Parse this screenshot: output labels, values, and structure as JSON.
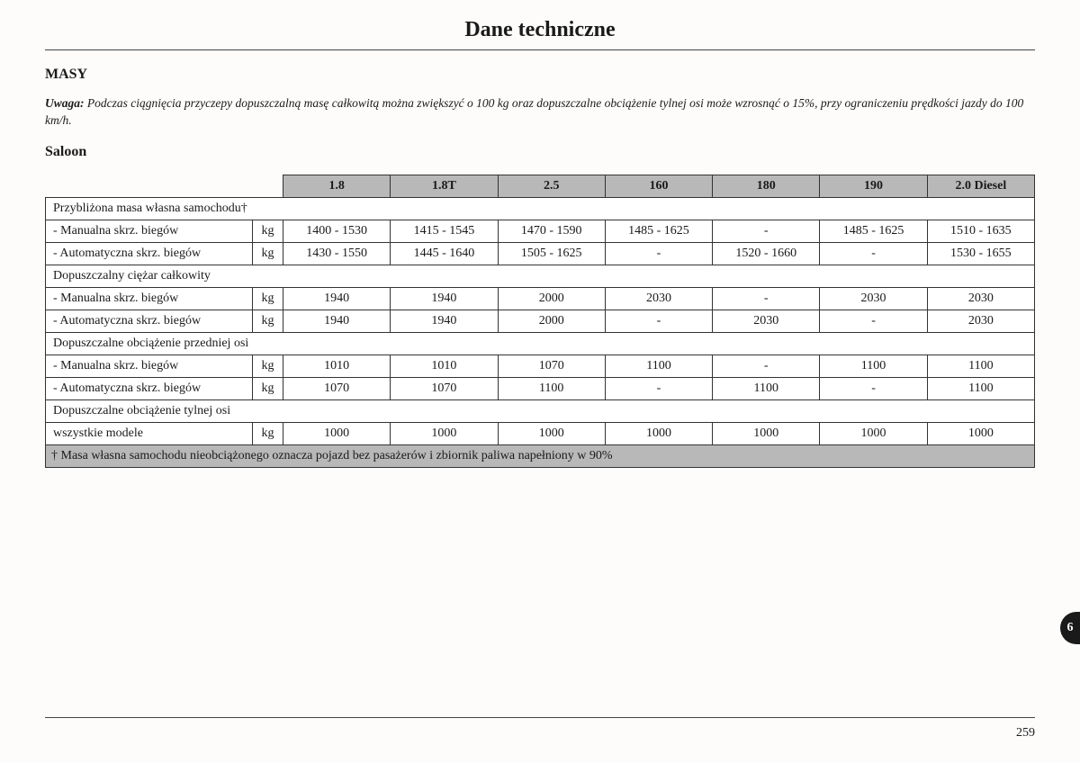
{
  "page_title": "Dane techniczne",
  "section_heading": "MASY",
  "note_label": "Uwaga:",
  "note_text": "Podczas ciągnięcia przyczepy dopuszczalną masę całkowitą można zwiększyć o 100 kg oraz dopuszczalne obciążenie tylnej osi może wzrosnąć o 15%, przy ograniczeniu prędkości jazdy do 100 km/h.",
  "subheading": "Saloon",
  "columns": [
    "1.8",
    "1.8T",
    "2.5",
    "160",
    "180",
    "190",
    "2.0 Diesel"
  ],
  "unit": "kg",
  "sections": [
    {
      "title": "Przybliżona masa własna samochodu†",
      "rows": [
        {
          "label": "- Manualna skrz. biegów",
          "values": [
            "1400 - 1530",
            "1415 - 1545",
            "1470 - 1590",
            "1485 - 1625",
            "-",
            "1485 - 1625",
            "1510 - 1635"
          ]
        },
        {
          "label": "- Automatyczna skrz. biegów",
          "values": [
            "1430 - 1550",
            "1445 - 1640",
            "1505 - 1625",
            "-",
            "1520 - 1660",
            "-",
            "1530 - 1655"
          ]
        }
      ]
    },
    {
      "title": "Dopuszczalny ciężar całkowity",
      "rows": [
        {
          "label": "- Manualna skrz. biegów",
          "values": [
            "1940",
            "1940",
            "2000",
            "2030",
            "-",
            "2030",
            "2030"
          ]
        },
        {
          "label": "- Automatyczna skrz. biegów",
          "values": [
            "1940",
            "1940",
            "2000",
            "-",
            "2030",
            "-",
            "2030"
          ]
        }
      ]
    },
    {
      "title": "Dopuszczalne obciążenie przedniej osi",
      "rows": [
        {
          "label": "- Manualna skrz. biegów",
          "values": [
            "1010",
            "1010",
            "1070",
            "1100",
            "-",
            "1100",
            "1100"
          ]
        },
        {
          "label": "- Automatyczna skrz. biegów",
          "values": [
            "1070",
            "1070",
            "1100",
            "-",
            "1100",
            "-",
            "1100"
          ]
        }
      ]
    },
    {
      "title": "Dopuszczalne obciążenie tylnej osi",
      "rows": [
        {
          "label": "wszystkie modele",
          "values": [
            "1000",
            "1000",
            "1000",
            "1000",
            "1000",
            "1000",
            "1000"
          ]
        }
      ]
    }
  ],
  "footnote": "† Masa własna samochodu nieobciążonego oznacza pojazd bez pasażerów i zbiornik paliwa napełniony w 90%",
  "page_number": "259",
  "side_tab": "6",
  "styling": {
    "header_bg": "#b8b8b8",
    "border_color": "#333",
    "page_bg": "#fdfcfb",
    "title_fontsize": 24,
    "body_fontsize": 14,
    "note_fontsize": 13.5
  }
}
